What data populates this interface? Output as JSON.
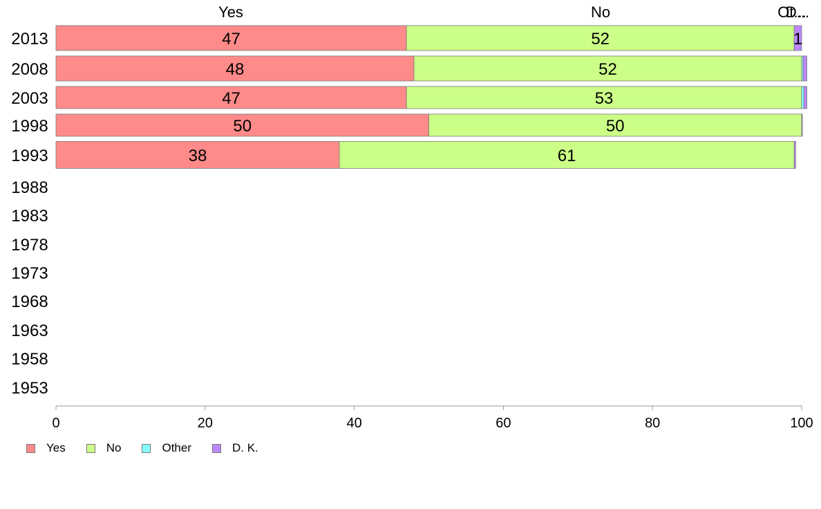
{
  "chart_data": {
    "type": "bar",
    "orientation": "horizontal",
    "stacked": "percent",
    "categories": [
      "2013",
      "2008",
      "2003",
      "1998",
      "1993",
      "1988",
      "1983",
      "1978",
      "1973",
      "1968",
      "1963",
      "1958",
      "1953"
    ],
    "series": [
      {
        "name": "Yes",
        "color": "#ff8a8a",
        "values": [
          47,
          48,
          47,
          50,
          38,
          null,
          null,
          null,
          null,
          null,
          null,
          null,
          null
        ]
      },
      {
        "name": "No",
        "color": "#ccff88",
        "values": [
          52,
          52,
          53,
          50,
          61,
          null,
          null,
          null,
          null,
          null,
          null,
          null,
          null
        ]
      },
      {
        "name": "Other",
        "color": "#88ffff",
        "values": [
          0,
          0.2,
          0.3,
          0,
          0,
          null,
          null,
          null,
          null,
          null,
          null,
          null,
          null
        ]
      },
      {
        "name": "D. K.",
        "color": "#bb88ff",
        "values": [
          1,
          0.5,
          0.4,
          0.1,
          0.2,
          null,
          null,
          null,
          null,
          null,
          null,
          null,
          null
        ]
      }
    ],
    "segment_labels": [
      [
        "47",
        "52",
        "",
        "1"
      ],
      [
        "48",
        "52",
        "",
        ""
      ],
      [
        "47",
        "53",
        "",
        ""
      ],
      [
        "50",
        "50",
        "",
        ""
      ],
      [
        "38",
        "61",
        "",
        ""
      ]
    ],
    "column_headers": [
      "Yes",
      "No",
      "Ot...",
      "D..."
    ],
    "xlim": [
      0,
      100
    ],
    "xticks": [
      "0",
      "20",
      "40",
      "60",
      "80",
      "100"
    ],
    "grid": false,
    "legend_position": "bottom-left"
  }
}
